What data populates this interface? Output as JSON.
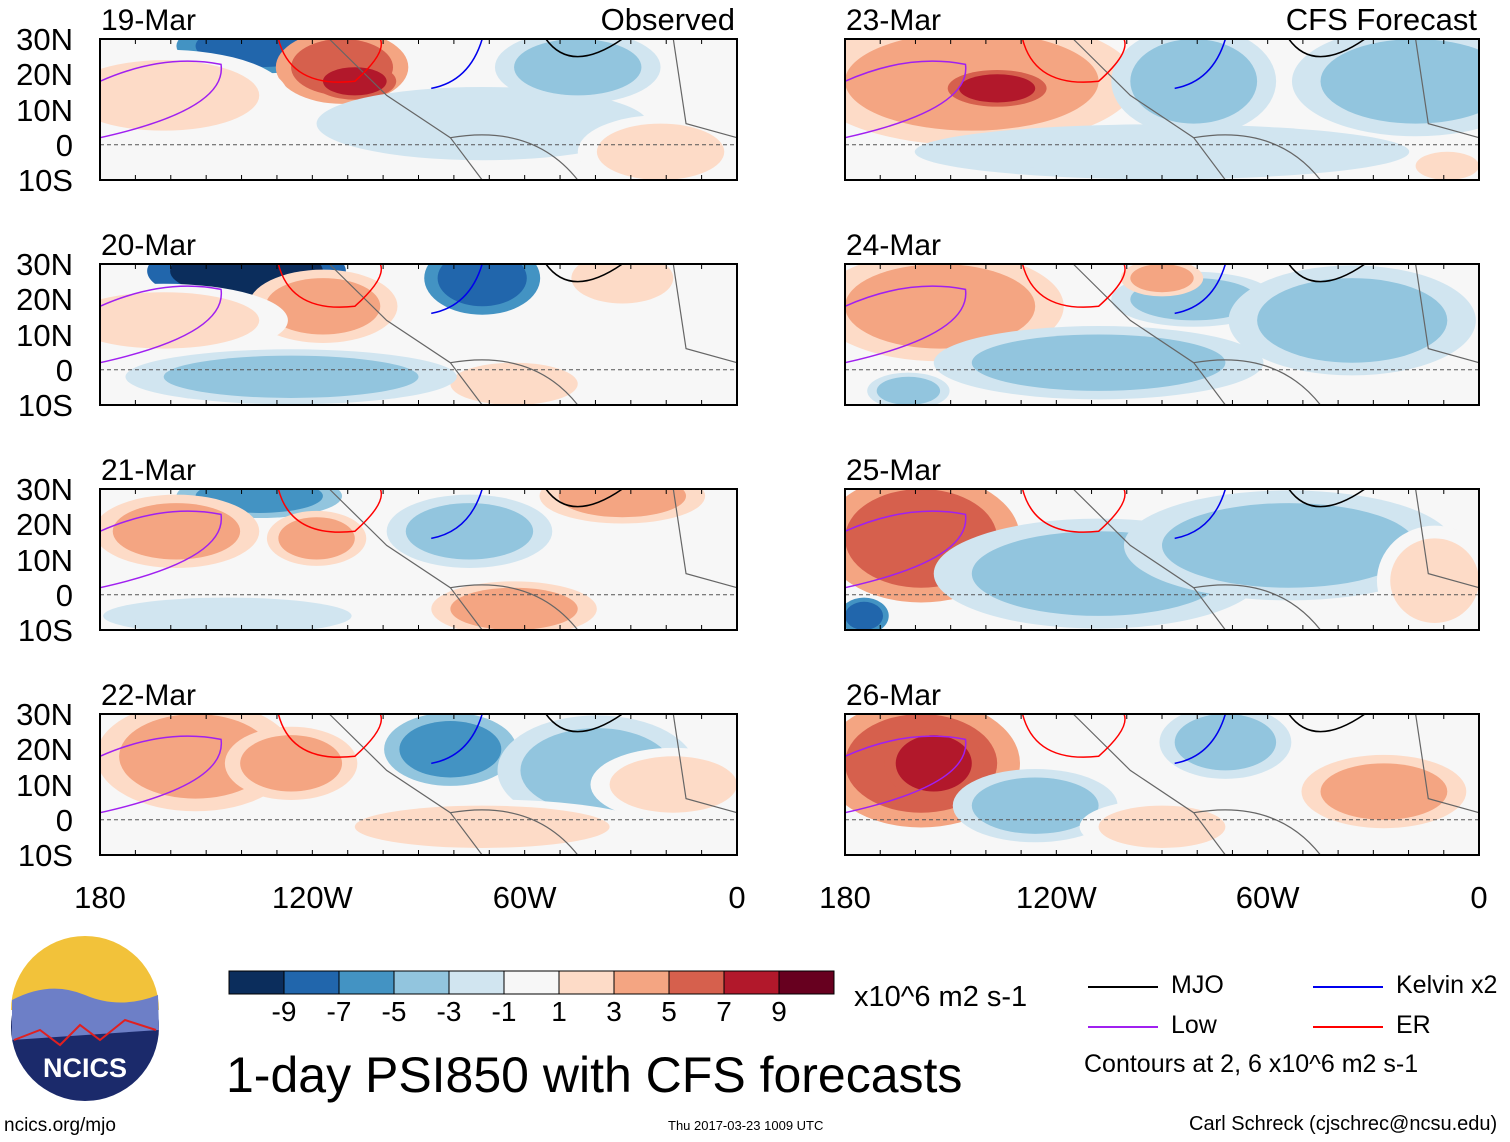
{
  "chart_data": {
    "type": "heatmap",
    "title": "1-day PSI850 with CFS forecasts",
    "variable": "PSI850 anomaly",
    "units": "x10^6 m2 s-1",
    "columns": [
      {
        "header": "Observed",
        "dates": [
          "19-Mar",
          "20-Mar",
          "21-Mar",
          "22-Mar"
        ]
      },
      {
        "header": "CFS Forecast",
        "dates": [
          "23-Mar",
          "24-Mar",
          "25-Mar",
          "26-Mar"
        ]
      }
    ],
    "lat_ticks": [
      "30N",
      "20N",
      "10N",
      "0",
      "10S"
    ],
    "lat_range": [
      -10,
      30
    ],
    "lon_ticks": [
      "180",
      "120W",
      "60W",
      "0"
    ],
    "lon_range": [
      -180,
      0
    ],
    "colorbar": {
      "levels": [
        "-9",
        "-7",
        "-5",
        "-3",
        "-1",
        "1",
        "3",
        "5",
        "7",
        "9"
      ],
      "colors": [
        "#0b2d5c",
        "#2166ac",
        "#4393c3",
        "#92c5de",
        "#d1e5f0",
        "#f7f7f7",
        "#fddbc7",
        "#f4a582",
        "#d6604d",
        "#b2182b",
        "#67001f"
      ]
    },
    "legend": [
      {
        "label": "MJO",
        "color": "#000000"
      },
      {
        "label": "Kelvin x2",
        "color": "#0000ee"
      },
      {
        "label": "Low",
        "color": "#a020f0"
      },
      {
        "label": "ER",
        "color": "#ff0000"
      }
    ],
    "contour_note": "Contours at 2, 6 x10^6 m2 s-1"
  },
  "footer": {
    "url": "ncics.org/mjo",
    "timestamp": "Thu 2017-03-23 1009 UTC",
    "author": "Carl Schreck (cjschrec@ncsu.edu)",
    "logo_text": "NCICS"
  }
}
